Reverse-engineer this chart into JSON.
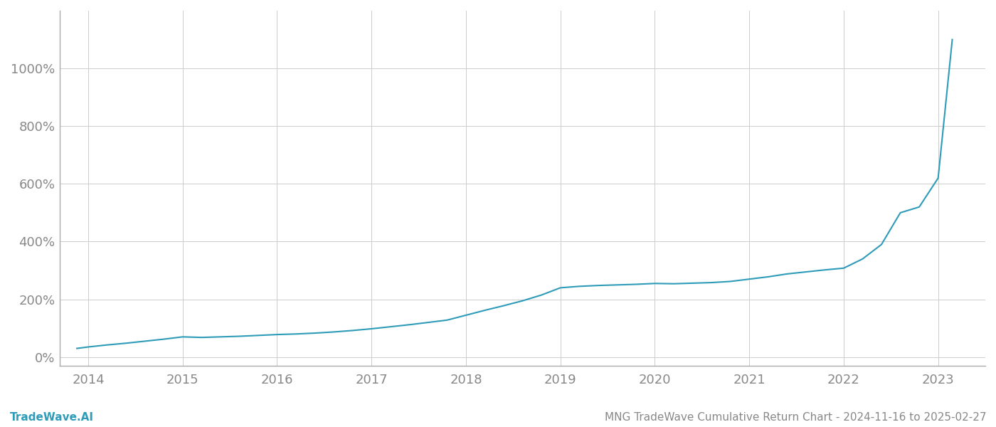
{
  "title": "MNG TradeWave Cumulative Return Chart - 2024-11-16 to 2025-02-27",
  "watermark": "TradeWave.AI",
  "line_color": "#2e9cb8",
  "background_color": "#ffffff",
  "grid_color": "#cccccc",
  "x_years": [
    2014,
    2015,
    2016,
    2017,
    2018,
    2019,
    2020,
    2021,
    2022,
    2023
  ],
  "x_data": [
    2013.88,
    2014.0,
    2014.2,
    2014.4,
    2014.6,
    2014.8,
    2015.0,
    2015.2,
    2015.4,
    2015.6,
    2015.8,
    2016.0,
    2016.2,
    2016.4,
    2016.6,
    2016.8,
    2017.0,
    2017.2,
    2017.4,
    2017.6,
    2017.8,
    2018.0,
    2018.2,
    2018.4,
    2018.6,
    2018.8,
    2019.0,
    2019.2,
    2019.4,
    2019.6,
    2019.8,
    2020.0,
    2020.2,
    2020.4,
    2020.6,
    2020.8,
    2021.0,
    2021.2,
    2021.4,
    2021.6,
    2021.8,
    2022.0,
    2022.2,
    2022.4,
    2022.6,
    2022.8,
    2023.0,
    2023.15
  ],
  "y_data": [
    30,
    35,
    42,
    48,
    55,
    62,
    70,
    68,
    70,
    72,
    75,
    78,
    80,
    83,
    87,
    92,
    98,
    105,
    112,
    120,
    128,
    145,
    162,
    178,
    195,
    215,
    240,
    245,
    248,
    250,
    252,
    255,
    254,
    256,
    258,
    262,
    270,
    278,
    288,
    295,
    302,
    308,
    340,
    390,
    500,
    520,
    620,
    1100
  ],
  "ylim": [
    -30,
    1200
  ],
  "yticks": [
    0,
    200,
    400,
    600,
    800,
    1000
  ],
  "xlim": [
    2013.7,
    2023.5
  ],
  "title_fontsize": 11,
  "watermark_fontsize": 11,
  "tick_color": "#888888",
  "tick_fontsize": 13,
  "line_width": 1.5,
  "spine_color": "#aaaaaa"
}
